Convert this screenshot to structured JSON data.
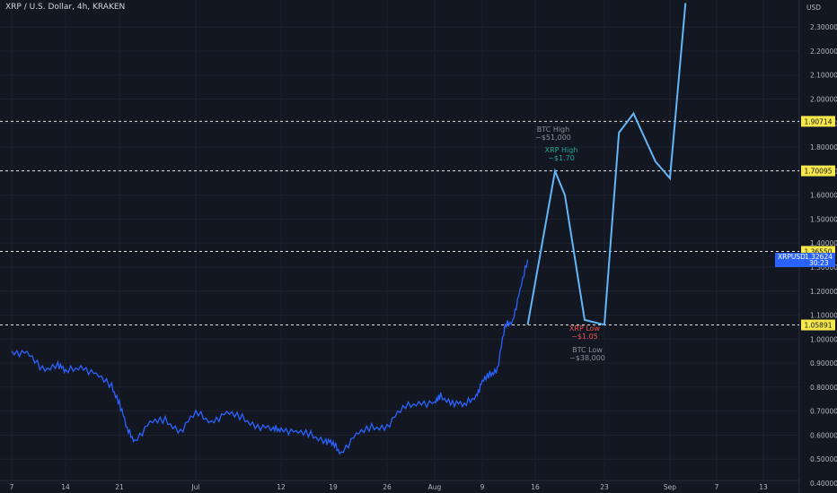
{
  "header": {
    "title": "XRP / U.S. Dollar, 4h, KRAKEN"
  },
  "axis": {
    "unit": "USD"
  },
  "colors": {
    "background": "#131722",
    "price_line": "#2962ff",
    "projection_line": "#64b5f6",
    "level_label_bg": "#f6e74a",
    "grid": "#1e2230",
    "xrp_high_text": "#26a69a",
    "xrp_low_text": "#ef5350",
    "btc_text": "#8a8f9c"
  },
  "chart_data": {
    "type": "line",
    "title": "XRP / U.S. Dollar, 4h, KRAKEN",
    "y_unit": "USD",
    "ylim": [
      0.4,
      2.4
    ],
    "y_ticks": [
      "2.30000",
      "2.20000",
      "2.10000",
      "2.00000",
      "1.90000",
      "1.80000",
      "1.70000",
      "1.60000",
      "1.50000",
      "1.40000",
      "1.30000",
      "1.20000",
      "1.10000",
      "1.00000",
      "0.90000",
      "0.80000",
      "0.70000",
      "0.60000",
      "0.50000",
      "0.40000"
    ],
    "x_tick_labels": [
      "7",
      "14",
      "21",
      "Jul",
      "12",
      "19",
      "26",
      "Aug",
      "9",
      "16",
      "23",
      "Sep",
      "7",
      "13"
    ],
    "horizontal_levels": [
      "1.90714",
      "1.70095",
      "1.36550",
      "1.05891"
    ],
    "current_price": {
      "ticker": "XRPUSD",
      "price": "1.32624",
      "countdown": "30:23"
    },
    "series": [
      {
        "kind": "price",
        "points": [
          [
            "7",
            0.95
          ],
          [
            "9",
            0.94
          ],
          [
            "11",
            0.87
          ],
          [
            "13",
            0.9
          ],
          [
            "14",
            0.86
          ],
          [
            "16",
            0.89
          ],
          [
            "18",
            0.85
          ],
          [
            "20",
            0.8
          ],
          [
            "21",
            0.74
          ],
          [
            "22",
            0.62
          ],
          [
            "23",
            0.58
          ],
          [
            "25",
            0.65
          ],
          [
            "27",
            0.66
          ],
          [
            "29",
            0.62
          ],
          [
            "Jul",
            0.69
          ],
          [
            "3",
            0.66
          ],
          [
            "5",
            0.69
          ],
          [
            "7",
            0.67
          ],
          [
            "9",
            0.64
          ],
          [
            "11",
            0.62
          ],
          [
            "12",
            0.63
          ],
          [
            "14",
            0.61
          ],
          [
            "16",
            0.6
          ],
          [
            "18",
            0.58
          ],
          [
            "19",
            0.56
          ],
          [
            "20",
            0.53
          ],
          [
            "22",
            0.6
          ],
          [
            "24",
            0.63
          ],
          [
            "26",
            0.64
          ],
          [
            "28",
            0.71
          ],
          [
            "30",
            0.74
          ],
          [
            "Aug",
            0.73
          ],
          [
            "2",
            0.76
          ],
          [
            "4",
            0.74
          ],
          [
            "6",
            0.72
          ],
          [
            "8",
            0.77
          ],
          [
            "9",
            0.82
          ],
          [
            "10",
            0.85
          ],
          [
            "11",
            0.88
          ],
          [
            "12",
            1.05
          ],
          [
            "13",
            1.08
          ],
          [
            "14",
            1.2
          ],
          [
            "15",
            1.33
          ]
        ]
      },
      {
        "kind": "projection",
        "points": [
          [
            "15",
            1.06
          ],
          [
            "18",
            1.7
          ],
          [
            "19",
            1.6
          ],
          [
            "21",
            1.08
          ],
          [
            "23",
            1.06
          ],
          [
            "25",
            1.86
          ],
          [
            "27",
            1.94
          ],
          [
            "30",
            1.74
          ],
          [
            "Sep",
            1.67
          ],
          [
            "3",
            2.4
          ]
        ]
      }
    ],
    "annotations": [
      {
        "text": "BTC High",
        "text2": "~$51,000",
        "color_key": "btc_text"
      },
      {
        "text": "XRP High",
        "text2": "~$1.70",
        "color_key": "xrp_high_text"
      },
      {
        "text": "XRP Low",
        "text2": "~$1.05",
        "color_key": "xrp_low_text"
      },
      {
        "text": "BTC Low",
        "text2": "~$38,000",
        "color_key": "btc_text"
      }
    ]
  }
}
